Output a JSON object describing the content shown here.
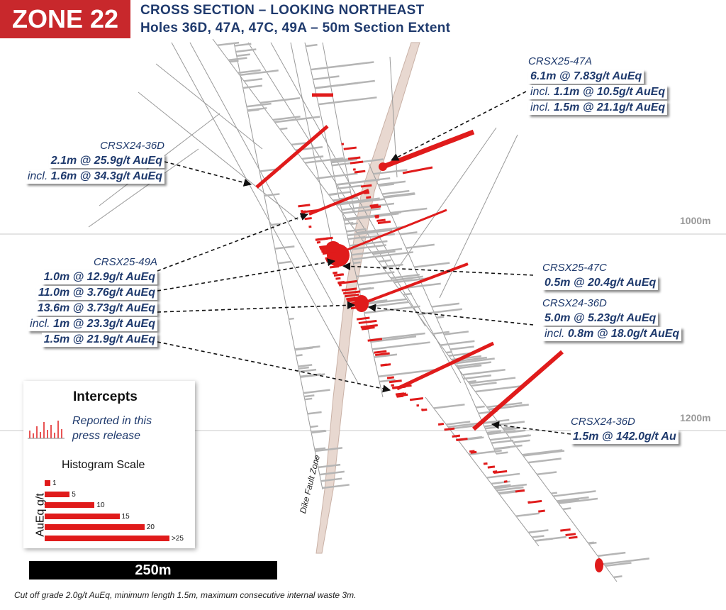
{
  "header": {
    "zone": "ZONE 22",
    "title": "CROSS SECTION – LOOKING NORTHEAST",
    "subtitle": "Holes 36D, 47A, 47C, 49A – 50m Section Extent"
  },
  "elevations": [
    "1000m",
    "1200m"
  ],
  "intercepts": {
    "a47": {
      "hole": "CRSX25-47A",
      "l1": "6.1m @ 7.83g/t AuEq",
      "l2_pre": "incl.",
      "l2": "1.1m @ 10.5g/t AuEq",
      "l3_pre": "incl.",
      "l3": "1.5m @ 21.1g/t AuEq"
    },
    "d36a": {
      "hole": "CRSX24-36D",
      "l1": "2.1m @ 25.9g/t AuEq",
      "l2_pre": "incl.",
      "l2": "1.6m @ 34.3g/t AuEq"
    },
    "a49": {
      "hole": "CRSX25-49A",
      "l1": "1.0m @ 12.9g/t AuEq",
      "l2": "11.0m @ 3.76g/t AuEq",
      "l3": "13.6m @ 3.73g/t AuEq",
      "l4_pre": "incl.",
      "l4": "1m @ 23.3g/t AuEq",
      "l5": "1.5m @ 21.9g/t AuEq"
    },
    "c47": {
      "hole": "CRSX25-47C",
      "l1": "0.5m @ 20.4g/t AuEq"
    },
    "d36b": {
      "hole": "CRSX24-36D",
      "l1": "5.0m @ 5.23g/t AuEq",
      "l2_pre": "incl.",
      "l2": "0.8m @ 18.0g/t AuEq"
    },
    "d36c": {
      "hole": "CRSX24-36D",
      "l1": "1.5m @ 142.0g/t Au"
    }
  },
  "legend": {
    "title": "Intercepts",
    "reported_l1": "Reported in this",
    "reported_l2": "press release",
    "histogram_title": "Histogram Scale",
    "axis_label": "AuEq g/t",
    "scale": [
      {
        "label": "1",
        "value": 1
      },
      {
        "label": "5",
        "value": 5
      },
      {
        "label": "10",
        "value": 10
      },
      {
        "label": "15",
        "value": 15
      },
      {
        "label": "20",
        "value": 20
      },
      {
        "label": ">25",
        "value": 25
      }
    ]
  },
  "scale_bar": "250m",
  "dike_label": "Dike Fault Zone",
  "footer": "Cut off grade 2.0g/t AuEq, minimum length 1.5m, maximum consecutive internal waste 3m.",
  "colors": {
    "badge": "#c8282c",
    "title": "#1f3a6d",
    "intercept": "#e01b1b",
    "dike": "#e8d8d0"
  }
}
